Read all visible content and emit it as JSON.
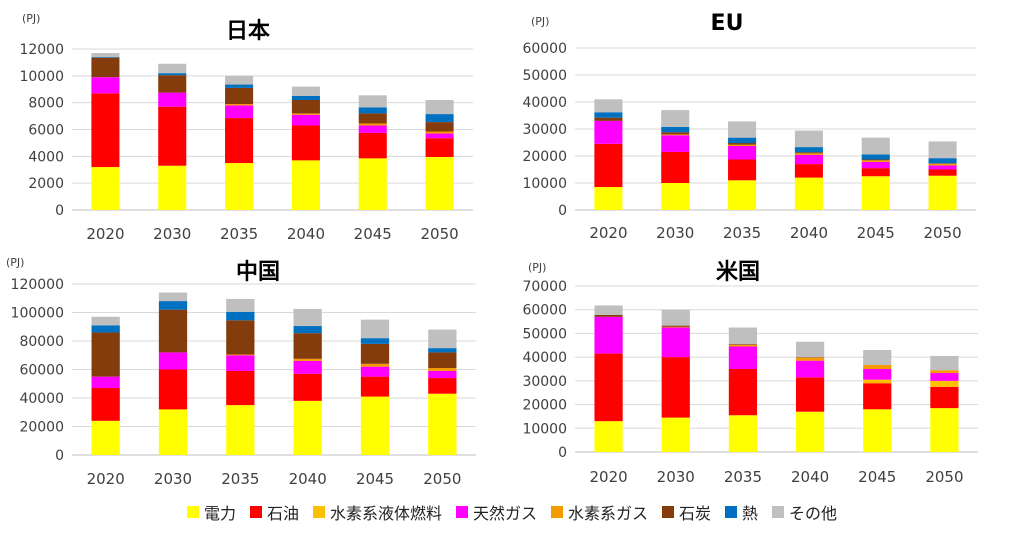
{
  "legend": [
    {
      "name": "電力",
      "color": "#FFFF00"
    },
    {
      "name": "石油",
      "color": "#FF0000"
    },
    {
      "name": "水素系液体燃料",
      "color": "#FFC000"
    },
    {
      "name": "天然ガス",
      "color": "#FF00FF"
    },
    {
      "name": "水素系ガス",
      "color": "#F59A00"
    },
    {
      "name": "石炭",
      "color": "#843C0C"
    },
    {
      "name": "熱",
      "color": "#0070C0"
    },
    {
      "name": "その他",
      "color": "#BFBFBF"
    }
  ],
  "chart_data": [
    {
      "type": "bar",
      "stacked": true,
      "title": "日本",
      "unit": "(PJ)",
      "categories": [
        "2020",
        "2030",
        "2035",
        "2040",
        "2045",
        "2050"
      ],
      "ylim": [
        0,
        12000
      ],
      "yticks": [
        0,
        2000,
        4000,
        6000,
        8000,
        10000,
        12000
      ],
      "series": [
        {
          "name": "電力",
          "values": [
            3200,
            3300,
            3500,
            3700,
            3850,
            3950
          ]
        },
        {
          "name": "石油",
          "values": [
            5500,
            4400,
            3350,
            2600,
            1900,
            1400
          ]
        },
        {
          "name": "水素系液体燃料",
          "values": [
            0,
            0,
            0,
            0,
            0,
            0
          ]
        },
        {
          "name": "天然ガス",
          "values": [
            1200,
            1050,
            950,
            800,
            550,
            350
          ]
        },
        {
          "name": "水素系ガス",
          "values": [
            0,
            0,
            100,
            100,
            150,
            150
          ]
        },
        {
          "name": "石炭",
          "values": [
            1450,
            1300,
            1200,
            1000,
            750,
            700
          ]
        },
        {
          "name": "熱",
          "values": [
            50,
            150,
            250,
            300,
            450,
            600
          ]
        },
        {
          "name": "その他",
          "values": [
            300,
            700,
            650,
            700,
            900,
            1050
          ]
        }
      ]
    },
    {
      "type": "bar",
      "stacked": true,
      "title": "EU",
      "unit": "(PJ)",
      "categories": [
        "2020",
        "2030",
        "2035",
        "2040",
        "2045",
        "2050"
      ],
      "ylim": [
        0,
        60000
      ],
      "yticks": [
        0,
        10000,
        20000,
        30000,
        40000,
        50000,
        60000
      ],
      "series": [
        {
          "name": "電力",
          "values": [
            8500,
            10000,
            11000,
            12000,
            12500,
            12700
          ]
        },
        {
          "name": "石油",
          "values": [
            16000,
            11500,
            7700,
            5000,
            3000,
            2300
          ]
        },
        {
          "name": "水素系液体燃料",
          "values": [
            0,
            0,
            0,
            0,
            0,
            0
          ]
        },
        {
          "name": "天然ガス",
          "values": [
            8500,
            6200,
            5000,
            3400,
            2300,
            1500
          ]
        },
        {
          "name": "水素系ガス",
          "values": [
            0,
            300,
            500,
            600,
            600,
            600
          ]
        },
        {
          "name": "石炭",
          "values": [
            1200,
            800,
            600,
            400,
            300,
            200
          ]
        },
        {
          "name": "熱",
          "values": [
            2000,
            2000,
            2000,
            1900,
            1900,
            1900
          ]
        },
        {
          "name": "その他",
          "values": [
            4800,
            6200,
            6000,
            6100,
            6200,
            6200
          ]
        }
      ]
    },
    {
      "type": "bar",
      "stacked": true,
      "title": "中国",
      "unit": "(PJ)",
      "categories": [
        "2020",
        "2030",
        "2035",
        "2040",
        "2045",
        "2050"
      ],
      "ylim": [
        0,
        120000
      ],
      "yticks": [
        0,
        20000,
        40000,
        60000,
        80000,
        100000,
        120000
      ],
      "series": [
        {
          "name": "電力",
          "values": [
            24000,
            32000,
            35000,
            38000,
            41000,
            43000
          ]
        },
        {
          "name": "石油",
          "values": [
            23000,
            28000,
            24000,
            19000,
            14000,
            11000
          ]
        },
        {
          "name": "水素系液体燃料",
          "values": [
            0,
            0,
            0,
            0,
            0,
            0
          ]
        },
        {
          "name": "天然ガス",
          "values": [
            8000,
            12000,
            11000,
            9000,
            7000,
            5000
          ]
        },
        {
          "name": "水素系ガス",
          "values": [
            0,
            0,
            500,
            1500,
            2000,
            2000
          ]
        },
        {
          "name": "石炭",
          "values": [
            31000,
            30000,
            24000,
            18000,
            14000,
            11000
          ]
        },
        {
          "name": "熱",
          "values": [
            5000,
            6000,
            6000,
            5000,
            4000,
            3000
          ]
        },
        {
          "name": "その他",
          "values": [
            6000,
            6000,
            9000,
            12000,
            13000,
            13000
          ]
        }
      ]
    },
    {
      "type": "bar",
      "stacked": true,
      "title": "米国",
      "unit": "(PJ)",
      "categories": [
        "2020",
        "2030",
        "2035",
        "2040",
        "2045",
        "2050"
      ],
      "ylim": [
        0,
        70000
      ],
      "yticks": [
        0,
        10000,
        20000,
        30000,
        40000,
        50000,
        60000,
        70000
      ],
      "series": [
        {
          "name": "電力",
          "values": [
            13000,
            14500,
            15500,
            17000,
            18000,
            18500
          ]
        },
        {
          "name": "石油",
          "values": [
            28500,
            25500,
            19500,
            14500,
            11000,
            9000
          ]
        },
        {
          "name": "水素系液体燃料",
          "values": [
            0,
            0,
            0,
            0,
            1500,
            2500
          ]
        },
        {
          "name": "天然ガス",
          "values": [
            15500,
            12500,
            9500,
            7000,
            4500,
            3300
          ]
        },
        {
          "name": "水素系ガス",
          "values": [
            0,
            300,
            700,
            1300,
            1700,
            1200
          ]
        },
        {
          "name": "石炭",
          "values": [
            800,
            500,
            300,
            200,
            0,
            0
          ]
        },
        {
          "name": "熱",
          "values": [
            0,
            0,
            0,
            0,
            0,
            0
          ]
        },
        {
          "name": "その他",
          "values": [
            4000,
            6700,
            7000,
            6500,
            6300,
            6000
          ]
        }
      ]
    }
  ]
}
